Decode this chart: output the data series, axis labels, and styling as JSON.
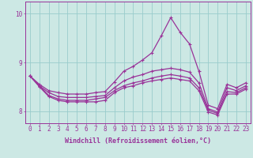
{
  "xlabel": "Windchill (Refroidissement éolien,°C)",
  "background_color": "#cce8e4",
  "grid_color": "#99cccc",
  "line_color": "#993399",
  "x_values": [
    0,
    1,
    2,
    3,
    4,
    5,
    6,
    7,
    8,
    9,
    10,
    11,
    12,
    13,
    14,
    15,
    16,
    17,
    18,
    19,
    20,
    21,
    22,
    23
  ],
  "series": [
    [
      8.72,
      8.55,
      8.42,
      8.38,
      8.35,
      8.35,
      8.35,
      8.38,
      8.4,
      8.6,
      8.82,
      8.92,
      9.05,
      9.2,
      9.55,
      9.92,
      9.62,
      9.38,
      8.82,
      8.12,
      8.05,
      8.55,
      8.48,
      8.58
    ],
    [
      8.72,
      8.52,
      8.38,
      8.3,
      8.28,
      8.28,
      8.28,
      8.3,
      8.32,
      8.48,
      8.62,
      8.7,
      8.75,
      8.82,
      8.85,
      8.88,
      8.85,
      8.8,
      8.58,
      8.05,
      7.98,
      8.48,
      8.42,
      8.52
    ],
    [
      8.72,
      8.52,
      8.32,
      8.25,
      8.22,
      8.22,
      8.22,
      8.25,
      8.28,
      8.42,
      8.52,
      8.58,
      8.62,
      8.68,
      8.72,
      8.75,
      8.72,
      8.68,
      8.48,
      8.02,
      7.95,
      8.4,
      8.38,
      8.48
    ],
    [
      8.72,
      8.5,
      8.3,
      8.22,
      8.19,
      8.19,
      8.19,
      8.19,
      8.22,
      8.38,
      8.48,
      8.52,
      8.58,
      8.62,
      8.65,
      8.68,
      8.65,
      8.62,
      8.42,
      7.98,
      7.92,
      8.35,
      8.35,
      8.45
    ]
  ],
  "ylim_min": 7.75,
  "ylim_max": 10.25,
  "yticks": [
    8,
    9,
    10
  ],
  "xticks": [
    0,
    1,
    2,
    3,
    4,
    5,
    6,
    7,
    8,
    9,
    10,
    11,
    12,
    13,
    14,
    15,
    16,
    17,
    18,
    19,
    20,
    21,
    22,
    23
  ],
  "tick_fontsize": 5.5,
  "xlabel_fontsize": 6,
  "marker_size": 2.2,
  "linewidth": 0.9
}
